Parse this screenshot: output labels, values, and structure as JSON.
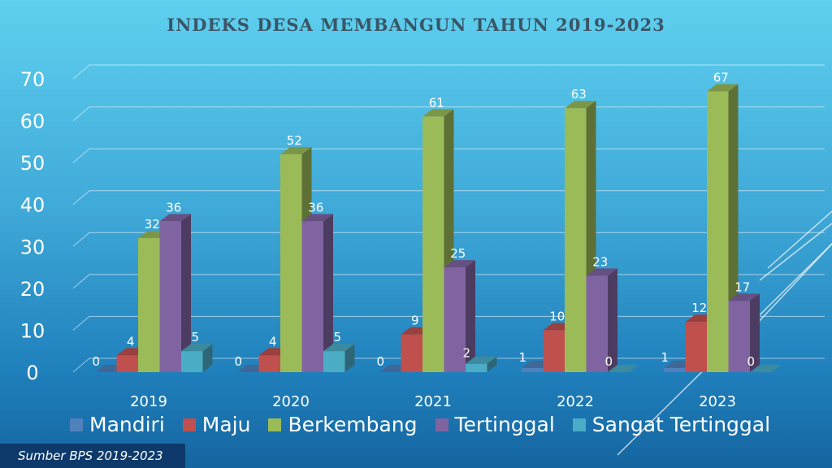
{
  "chart_data": {
    "type": "bar",
    "title": "INDEKS DESA MEMBANGUN  TAHUN 2019-2023",
    "categories": [
      "2019",
      "2020",
      "2021",
      "2022",
      "2023"
    ],
    "series": [
      {
        "name": "Mandiri",
        "color": "#4f81bd",
        "values": [
          0,
          0,
          0,
          1,
          1
        ]
      },
      {
        "name": "Maju",
        "color": "#c0504d",
        "values": [
          4,
          4,
          9,
          10,
          12
        ]
      },
      {
        "name": "Berkembang",
        "color": "#9bbb59",
        "values": [
          32,
          52,
          61,
          63,
          67
        ]
      },
      {
        "name": "Tertinggal",
        "color": "#8064a2",
        "values": [
          36,
          36,
          25,
          23,
          17
        ]
      },
      {
        "name": "Sangat Tertinggal",
        "color": "#4bacc6",
        "values": [
          5,
          5,
          2,
          0,
          0
        ]
      }
    ],
    "ylim": [
      0,
      70
    ],
    "yticks": [
      0,
      10,
      20,
      30,
      40,
      50,
      60,
      70
    ],
    "grid": true,
    "legend": "bottom",
    "style": "3d-column"
  },
  "footer": {
    "source": "Sumber BPS 2019-2023"
  }
}
